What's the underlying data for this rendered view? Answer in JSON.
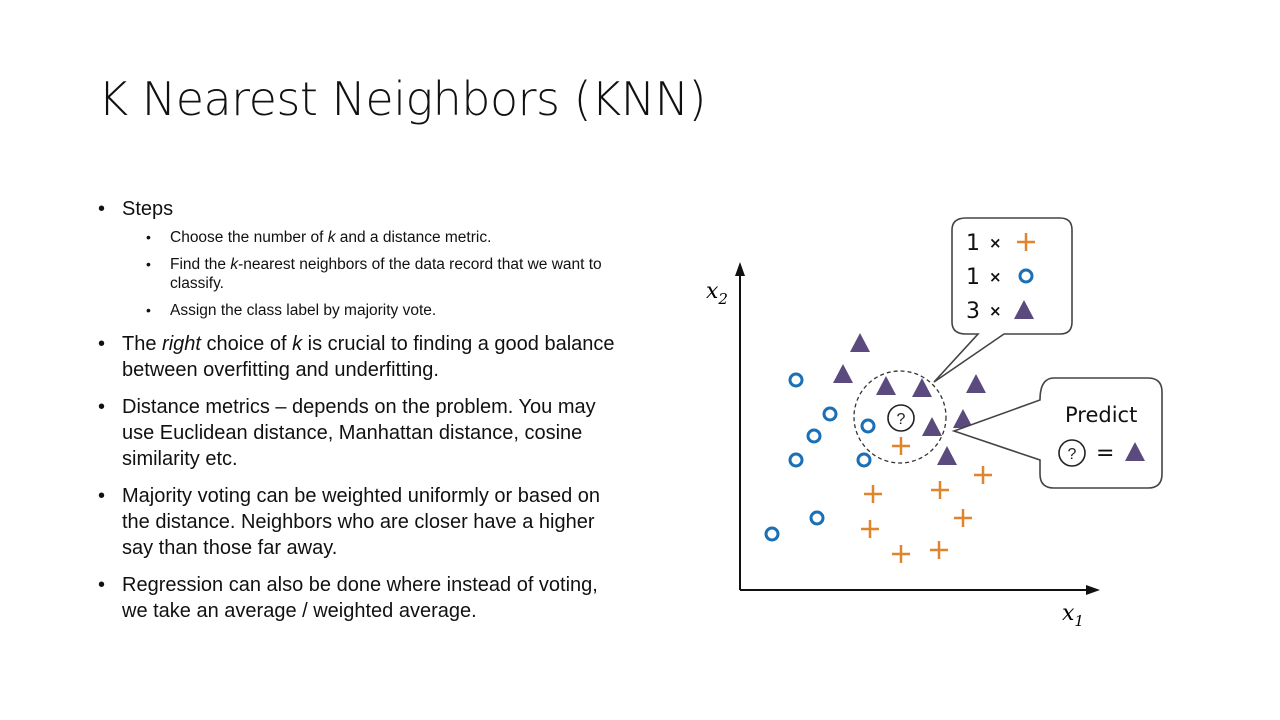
{
  "slide": {
    "title": "K Nearest Neighbors (KNN)",
    "bullets": {
      "steps": {
        "label": "Steps",
        "sub": {
          "s1": {
            "a": "Choose the number of ",
            "k": "k",
            "b": " and a distance metric."
          },
          "s2": {
            "a": "Find the ",
            "k": "k",
            "b": "-nearest neighbors of the data record that we want to classify."
          },
          "s3": {
            "text": "Assign the class label by majority vote."
          }
        }
      },
      "right_choice": {
        "a": "The ",
        "right": "right",
        "b": " choice of ",
        "k": "k",
        "c": " is crucial to finding a good balance between overfitting and underfitting."
      },
      "distance": {
        "text": "Distance metrics – depends on the problem. You may use Euclidean distance, Manhattan distance, cosine similarity etc."
      },
      "voting": {
        "text": "Majority voting can be weighted uniformly or based on the distance. Neighbors who are closer have a higher say than those far away."
      },
      "regression": {
        "text": "Regression can also be done where instead of voting, we take an average / weighted average."
      }
    }
  },
  "diagram": {
    "x_label": "x",
    "x_sub": "1",
    "y_label": "x",
    "y_sub": "2",
    "query_symbol": "?",
    "count_box": {
      "rows": [
        {
          "count": "1",
          "times": "×",
          "class": "plus"
        },
        {
          "count": "1",
          "times": "×",
          "class": "circle"
        },
        {
          "count": "3",
          "times": "×",
          "class": "triangle"
        }
      ]
    },
    "predict_box": {
      "title": "Predict",
      "equals": "=",
      "result_class": "triangle"
    },
    "colors": {
      "circle": "#1a6fb5",
      "plus": "#e0852c",
      "triangle": "#5b4a7e",
      "axis": "#111111",
      "box_border": "#444444"
    }
  }
}
